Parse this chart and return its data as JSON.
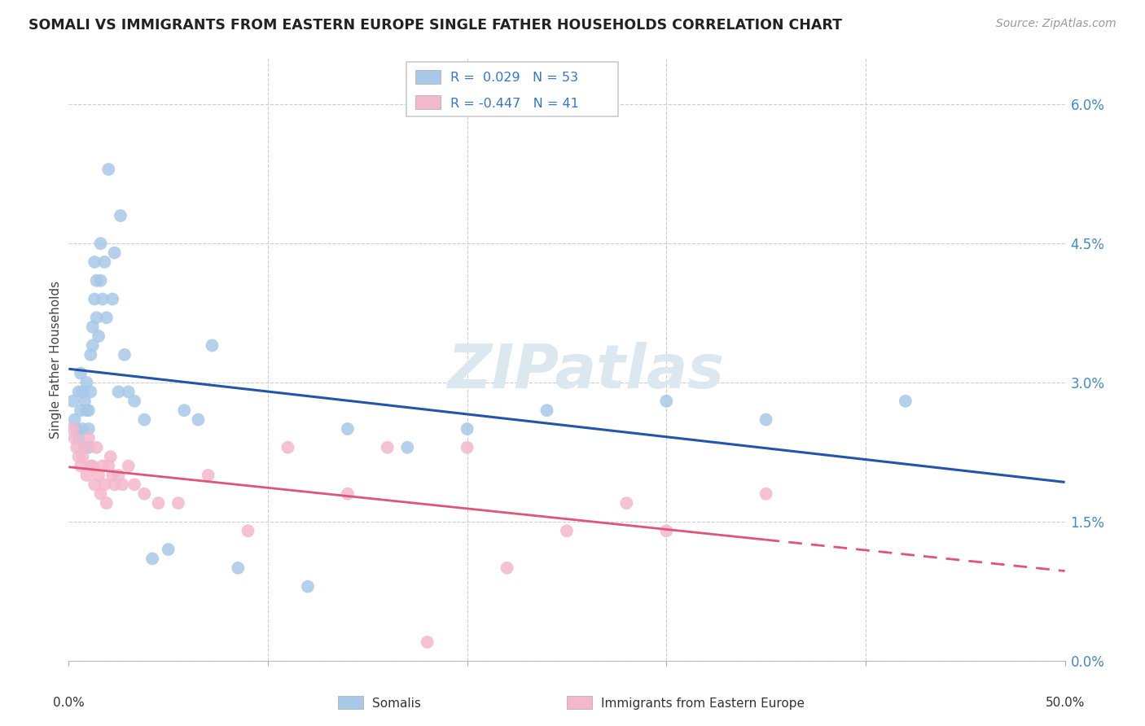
{
  "title": "SOMALI VS IMMIGRANTS FROM EASTERN EUROPE SINGLE FATHER HOUSEHOLDS CORRELATION CHART",
  "source": "Source: ZipAtlas.com",
  "ylabel": "Single Father Households",
  "ytick_values": [
    0.0,
    1.5,
    3.0,
    4.5,
    6.0
  ],
  "xlim": [
    0,
    50
  ],
  "ylim": [
    0.0,
    6.5
  ],
  "legend_somali": "Somalis",
  "legend_eastern": "Immigrants from Eastern Europe",
  "r_somali": "0.029",
  "n_somali": "53",
  "r_eastern": "-0.447",
  "n_eastern": "41",
  "somali_color": "#a8c8e8",
  "eastern_color": "#f4b8cc",
  "line_somali_color": "#2255aa",
  "line_eastern_color": "#e05575",
  "watermark_color": "#dce8f0",
  "background_color": "#ffffff",
  "grid_color": "#cccccc",
  "somali_x": [
    0.2,
    0.3,
    0.4,
    0.5,
    0.5,
    0.6,
    0.6,
    0.7,
    0.7,
    0.8,
    0.8,
    0.9,
    0.9,
    1.0,
    1.0,
    1.0,
    1.1,
    1.1,
    1.2,
    1.2,
    1.3,
    1.3,
    1.4,
    1.4,
    1.5,
    1.6,
    1.6,
    1.7,
    1.8,
    1.9,
    2.0,
    2.2,
    2.3,
    2.5,
    2.6,
    2.8,
    3.0,
    3.3,
    3.8,
    4.2,
    5.0,
    5.8,
    6.5,
    7.2,
    8.5,
    12.0,
    14.0,
    17.0,
    20.0,
    24.0,
    30.0,
    35.0,
    42.0
  ],
  "somali_y": [
    2.8,
    2.6,
    2.5,
    2.9,
    2.4,
    3.1,
    2.7,
    2.9,
    2.5,
    2.8,
    2.3,
    3.0,
    2.7,
    2.7,
    2.5,
    2.3,
    3.3,
    2.9,
    3.6,
    3.4,
    4.3,
    3.9,
    4.1,
    3.7,
    3.5,
    4.5,
    4.1,
    3.9,
    4.3,
    3.7,
    5.3,
    3.9,
    4.4,
    2.9,
    4.8,
    3.3,
    2.9,
    2.8,
    2.6,
    1.1,
    1.2,
    2.7,
    2.6,
    3.4,
    1.0,
    0.8,
    2.5,
    2.3,
    2.5,
    2.7,
    2.8,
    2.6,
    2.8
  ],
  "eastern_x": [
    0.2,
    0.3,
    0.4,
    0.5,
    0.6,
    0.7,
    0.8,
    0.9,
    1.0,
    1.1,
    1.2,
    1.3,
    1.4,
    1.5,
    1.6,
    1.7,
    1.8,
    1.9,
    2.0,
    2.1,
    2.2,
    2.3,
    2.5,
    2.7,
    3.0,
    3.3,
    3.8,
    4.5,
    5.5,
    7.0,
    9.0,
    11.0,
    14.0,
    16.0,
    20.0,
    25.0,
    30.0,
    35.0,
    22.0,
    28.0,
    18.0
  ],
  "eastern_y": [
    2.5,
    2.4,
    2.3,
    2.2,
    2.1,
    2.2,
    2.3,
    2.0,
    2.4,
    2.1,
    2.1,
    1.9,
    2.3,
    2.0,
    1.8,
    2.1,
    1.9,
    1.7,
    2.1,
    2.2,
    2.0,
    1.9,
    2.0,
    1.9,
    2.1,
    1.9,
    1.8,
    1.7,
    1.7,
    2.0,
    1.4,
    2.3,
    1.8,
    2.3,
    2.3,
    1.4,
    1.4,
    1.8,
    1.0,
    1.7,
    0.2
  ]
}
